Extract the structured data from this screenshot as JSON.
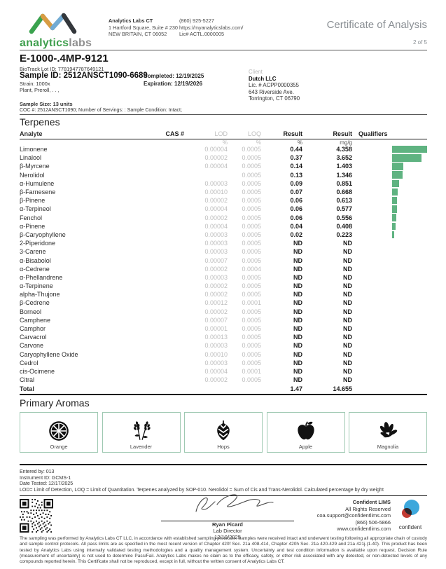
{
  "header": {
    "brand_primary": "analytics",
    "brand_secondary": "labs",
    "lab": {
      "name": "Analytics Labs CT",
      "address1": "1 Hartford Square, Suite # 230",
      "address2": "NEW BRITAIN, CT 06052",
      "phone": "(860) 925-5227",
      "website": "https://myanalyticslabs.com/",
      "license": "Lic# ACTL.0000005"
    },
    "title": "Certificate of Analysis",
    "page_number": "2 of 5"
  },
  "sample": {
    "product_name": "E-1000-.4MP-9121",
    "biotrack_lot": "BioTrack Lot ID: 7781947787649121",
    "sample_id": "Sample ID: 2512ANSCT1090-6689",
    "completed": "Completed: 12/19/2025",
    "expiration": "Expiration: 12/19/2026",
    "strain": "Strain: 1000x",
    "matrix": "Plant, Preroll, . . ,",
    "sample_size": "Sample Size: 13 units",
    "coc": "COC #: 2512ANSCT1090; Number of Servings: : Sample Condition: Intact;"
  },
  "client": {
    "label": "Client",
    "name": "Dutch LLC",
    "license": "Lic. # ACPP0000355",
    "address1": "643 Riverside Ave.",
    "address2": "Torrington, CT 06790"
  },
  "terpenes": {
    "section_title": "Terpenes",
    "columns": {
      "analyte": "Analyte",
      "cas": "CAS #",
      "lod": "LOD",
      "loq": "LOQ",
      "result_pct": "Result",
      "result_mgg": "Result",
      "qualifiers": "Qualifiers"
    },
    "units": {
      "lod": "%",
      "loq": "%",
      "result_pct": "%",
      "result_mgg": "mg/g"
    },
    "bar_color": "#5fb381",
    "bar_scale": 11.5,
    "rows": [
      {
        "name": "Limonene",
        "cas": "",
        "lod": "0.00004",
        "loq": "0.0005",
        "pct": "0.44",
        "mgg": "4.358",
        "bar": 4.358
      },
      {
        "name": "Linalool",
        "cas": "",
        "lod": "0.00002",
        "loq": "0.0005",
        "pct": "0.37",
        "mgg": "3.652",
        "bar": 3.652
      },
      {
        "name": "β-Myrcene",
        "cas": "",
        "lod": "0.00004",
        "loq": "0.0005",
        "pct": "0.14",
        "mgg": "1.403",
        "bar": 1.403
      },
      {
        "name": "Nerolidol",
        "cas": "",
        "lod": "",
        "loq": "0.0005",
        "pct": "0.13",
        "mgg": "1.346",
        "bar": 1.346
      },
      {
        "name": "α-Humulene",
        "cas": "",
        "lod": "0.00003",
        "loq": "0.0005",
        "pct": "0.09",
        "mgg": "0.851",
        "bar": 0.851
      },
      {
        "name": "β-Farnesene",
        "cas": "",
        "lod": "0.00010",
        "loq": "0.0005",
        "pct": "0.07",
        "mgg": "0.668",
        "bar": 0.668
      },
      {
        "name": "β-Pinene",
        "cas": "",
        "lod": "0.00002",
        "loq": "0.0005",
        "pct": "0.06",
        "mgg": "0.613",
        "bar": 0.613
      },
      {
        "name": "α-Terpineol",
        "cas": "",
        "lod": "0.00004",
        "loq": "0.0005",
        "pct": "0.06",
        "mgg": "0.577",
        "bar": 0.577
      },
      {
        "name": "Fenchol",
        "cas": "",
        "lod": "0.00002",
        "loq": "0.0005",
        "pct": "0.06",
        "mgg": "0.556",
        "bar": 0.556
      },
      {
        "name": "α-Pinene",
        "cas": "",
        "lod": "0.00004",
        "loq": "0.0005",
        "pct": "0.04",
        "mgg": "0.408",
        "bar": 0.408
      },
      {
        "name": "β-Caryophyllene",
        "cas": "",
        "lod": "0.00003",
        "loq": "0.0005",
        "pct": "0.02",
        "mgg": "0.223",
        "bar": 0.223
      },
      {
        "name": "2-Piperidone",
        "cas": "",
        "lod": "0.00003",
        "loq": "0.0005",
        "pct": "ND",
        "mgg": "ND",
        "bar": 0
      },
      {
        "name": "3-Carene",
        "cas": "",
        "lod": "0.00003",
        "loq": "0.0005",
        "pct": "ND",
        "mgg": "ND",
        "bar": 0
      },
      {
        "name": "α-Bisabolol",
        "cas": "",
        "lod": "0.00007",
        "loq": "0.0005",
        "pct": "ND",
        "mgg": "ND",
        "bar": 0
      },
      {
        "name": "α-Cedrene",
        "cas": "",
        "lod": "0.00002",
        "loq": "0.0004",
        "pct": "ND",
        "mgg": "ND",
        "bar": 0
      },
      {
        "name": "α-Phellandrene",
        "cas": "",
        "lod": "0.00003",
        "loq": "0.0005",
        "pct": "ND",
        "mgg": "ND",
        "bar": 0
      },
      {
        "name": "α-Terpinene",
        "cas": "",
        "lod": "0.00002",
        "loq": "0.0005",
        "pct": "ND",
        "mgg": "ND",
        "bar": 0
      },
      {
        "name": "alpha-Thujone",
        "cas": "",
        "lod": "0.00002",
        "loq": "0.0005",
        "pct": "ND",
        "mgg": "ND",
        "bar": 0
      },
      {
        "name": "β-Cedrene",
        "cas": "",
        "lod": "0.00012",
        "loq": "0.0001",
        "pct": "ND",
        "mgg": "ND",
        "bar": 0
      },
      {
        "name": "Borneol",
        "cas": "",
        "lod": "0.00002",
        "loq": "0.0005",
        "pct": "ND",
        "mgg": "ND",
        "bar": 0
      },
      {
        "name": "Camphene",
        "cas": "",
        "lod": "0.00007",
        "loq": "0.0005",
        "pct": "ND",
        "mgg": "ND",
        "bar": 0
      },
      {
        "name": "Camphor",
        "cas": "",
        "lod": "0.00001",
        "loq": "0.0005",
        "pct": "ND",
        "mgg": "ND",
        "bar": 0
      },
      {
        "name": "Carvacrol",
        "cas": "",
        "lod": "0.00013",
        "loq": "0.0005",
        "pct": "ND",
        "mgg": "ND",
        "bar": 0
      },
      {
        "name": "Carvone",
        "cas": "",
        "lod": "0.00003",
        "loq": "0.0005",
        "pct": "ND",
        "mgg": "ND",
        "bar": 0
      },
      {
        "name": "Caryophyllene Oxide",
        "cas": "",
        "lod": "0.00010",
        "loq": "0.0005",
        "pct": "ND",
        "mgg": "ND",
        "bar": 0
      },
      {
        "name": "Cedrol",
        "cas": "",
        "lod": "0.00003",
        "loq": "0.0005",
        "pct": "ND",
        "mgg": "ND",
        "bar": 0
      },
      {
        "name": "cis-Ocimene",
        "cas": "",
        "lod": "0.00004",
        "loq": "0.0001",
        "pct": "ND",
        "mgg": "ND",
        "bar": 0
      },
      {
        "name": "Citral",
        "cas": "",
        "lod": "0.00002",
        "loq": "0.0005",
        "pct": "ND",
        "mgg": "ND",
        "bar": 0
      }
    ],
    "total": {
      "label": "Total",
      "pct": "1.47",
      "mgg": "14.655"
    }
  },
  "chart_data": {
    "type": "bar",
    "orientation": "horizontal",
    "categories": [
      "Limonene",
      "Linalool",
      "β-Myrcene",
      "Nerolidol",
      "α-Humulene",
      "β-Farnesene",
      "β-Pinene",
      "α-Terpineol",
      "Fenchol",
      "α-Pinene",
      "β-Caryophyllene"
    ],
    "values": [
      4.358,
      3.652,
      1.403,
      1.346,
      0.851,
      0.668,
      0.613,
      0.577,
      0.556,
      0.408,
      0.223
    ],
    "title": "",
    "xlabel": "mg/g",
    "ylabel": "Analyte",
    "xlim": [
      0,
      4.358
    ],
    "grid": false,
    "legend": false,
    "bar_color": "#5fb381"
  },
  "aromas": {
    "section_title": "Primary Aromas",
    "items": [
      {
        "label": "Orange",
        "icon": "orange-slice-icon"
      },
      {
        "label": "Lavender",
        "icon": "lavender-icon"
      },
      {
        "label": "Hops",
        "icon": "hops-icon"
      },
      {
        "label": "Apple",
        "icon": "apple-icon"
      },
      {
        "label": "Magnolia",
        "icon": "magnolia-icon"
      }
    ]
  },
  "footer": {
    "entered_by": "Entered by: 013",
    "instrument": "Instrument ID: GCMS-1",
    "date_tested": "Date Tested: 12/17/2025",
    "definitions": "LOD= Limit of Detection, LOQ = Limit of Quantitation. Terpenes analyzed by SOP-010. Nerolidol = Sum of Cis and Trans-Nerolidol. Calculated percentage by dry weight",
    "signature": {
      "name": "Ryan Picard",
      "title": "Lab Director",
      "date": "12/19/2025"
    },
    "lims": {
      "name": "Confident LIMS",
      "rights": "All Rights Reserved",
      "email": "coa.support@confidentlims.com",
      "phone": "(866) 506-5866",
      "site": "www.confidentlims.com",
      "brand": "confident"
    },
    "disclaimer": "The sampling was performed by Analytics Labs CT LLC, in accordance with established sampling protocols. Samples were received intact and underwent testing following all appropriate chain of custody and sample control protocols. All pass limits are as specified in the most recent version of Chapter 420f Sec. 21a 408-414, Chapter 420h Sec. 21a 420-429 and 21a 421j-(1-40). This product has been tested by Analytics Labs using internally validated testing methodologies and a quality management system. Uncertainty and test condition information is available upon request. Decision Rule (measurement of uncertainty) is not used to determine Pass/Fail. Analytics Labs makes no claim as to the efficacy, safety, or other risk associated with any detected, or non-detected levels of any compounds reported herein. This Certificate shall not be reproduced, except in full, without the written consent of Analytics Labs CT."
  }
}
